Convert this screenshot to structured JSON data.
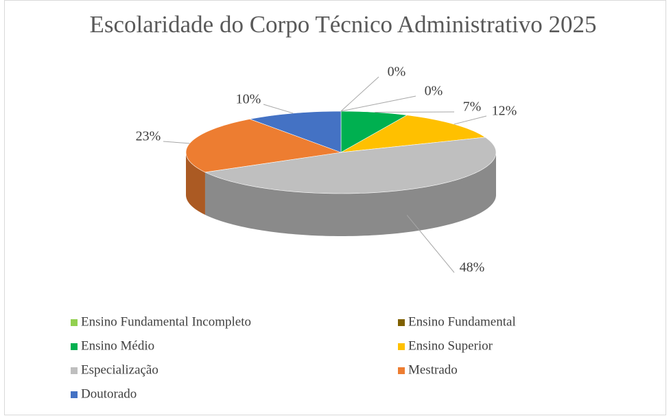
{
  "chart_data": {
    "type": "pie3d",
    "title": "Escolaridade do Corpo Técnico Administrativo 2025",
    "categories": [
      "Ensino Fundamental Incompleto",
      "Ensino Fundamental",
      "Ensino Médio",
      "Ensino Superior",
      "Especialização",
      "Mestrado",
      "Doutorado"
    ],
    "values": [
      0,
      0,
      7,
      12,
      48,
      23,
      10
    ],
    "value_labels": [
      "0%",
      "0%",
      "7%",
      "12%",
      "48%",
      "23%",
      "10%"
    ],
    "colors": [
      "#92d050",
      "#7f6000",
      "#00b050",
      "#ffc000",
      "#bfbfbf",
      "#ed7d31",
      "#4472c4"
    ],
    "legend": "bottom"
  }
}
